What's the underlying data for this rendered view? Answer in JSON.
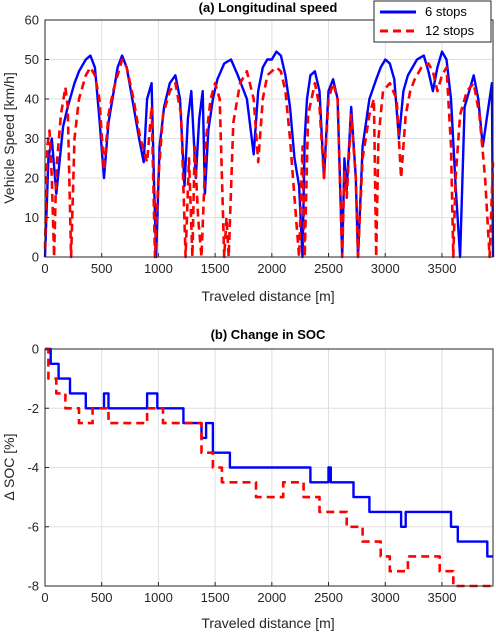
{
  "chart_data": [
    {
      "type": "line",
      "title": "(a) Longitudinal speed",
      "xlabel": "Traveled distance [m]",
      "ylabel": "Vehicle Speed [km/h]",
      "xlim": [
        0,
        3950
      ],
      "ylim": [
        0,
        60
      ],
      "xticks": [
        0,
        500,
        1000,
        1500,
        2000,
        2500,
        3000,
        3500
      ],
      "yticks": [
        0,
        10,
        20,
        30,
        40,
        50,
        60
      ],
      "grid": true,
      "legend": "top-right",
      "series": [
        {
          "name": "6 stops",
          "color": "#0000ff",
          "style": "solid",
          "x": [
            0,
            30,
            60,
            100,
            160,
            200,
            260,
            300,
            360,
            400,
            440,
            480,
            520,
            560,
            600,
            640,
            680,
            720,
            770,
            830,
            870,
            900,
            940,
            960,
            980,
            1010,
            1050,
            1100,
            1150,
            1190,
            1230,
            1260,
            1290,
            1330,
            1360,
            1390,
            1410,
            1440,
            1480,
            1520,
            1580,
            1640,
            1700,
            1780,
            1840,
            1880,
            1920,
            1960,
            2000,
            2040,
            2080,
            2120,
            2160,
            2200,
            2240,
            2270,
            2290,
            2310,
            2340,
            2380,
            2420,
            2460,
            2500,
            2540,
            2580,
            2620,
            2640,
            2660,
            2700,
            2740,
            2760,
            2800,
            2860,
            2920,
            2960,
            3000,
            3040,
            3080,
            3120,
            3160,
            3200,
            3240,
            3280,
            3340,
            3380,
            3420,
            3460,
            3500,
            3540,
            3580,
            3620,
            3660,
            3700,
            3740,
            3780,
            3820,
            3860,
            3900,
            3940,
            3950
          ],
          "y": [
            0,
            25,
            30,
            16,
            33,
            38,
            44,
            47,
            50,
            51,
            48,
            35,
            20,
            34,
            41,
            48,
            51,
            48,
            40,
            30,
            24,
            40,
            44,
            20,
            0,
            28,
            38,
            44,
            46,
            40,
            18,
            35,
            42,
            20,
            35,
            42,
            16,
            32,
            40,
            45,
            49,
            50,
            46,
            40,
            26,
            42,
            48,
            50,
            50,
            52,
            51,
            46,
            38,
            25,
            18,
            0,
            30,
            40,
            46,
            47,
            42,
            20,
            42,
            45,
            40,
            0,
            25,
            17,
            38,
            20,
            0,
            28,
            40,
            45,
            48,
            50,
            49,
            45,
            30,
            42,
            46,
            48,
            50,
            51,
            47,
            42,
            48,
            52,
            50,
            40,
            18,
            0,
            38,
            42,
            46,
            40,
            28,
            36,
            44,
            0
          ],
          "visible_extent_note": ""
        },
        {
          "name": "12 stops",
          "color": "#ff0000",
          "style": "dashed",
          "x": [
            0,
            20,
            40,
            60,
            80,
            100,
            140,
            180,
            200,
            230,
            260,
            300,
            360,
            400,
            440,
            480,
            520,
            560,
            600,
            640,
            680,
            720,
            780,
            840,
            900,
            940,
            970,
            1000,
            1040,
            1100,
            1150,
            1200,
            1240,
            1270,
            1300,
            1320,
            1350,
            1380,
            1420,
            1460,
            1500,
            1540,
            1580,
            1600,
            1620,
            1660,
            1720,
            1780,
            1840,
            1880,
            1920,
            1960,
            2000,
            2040,
            2080,
            2120,
            2160,
            2200,
            2240,
            2270,
            2290,
            2320,
            2380,
            2420,
            2460,
            2500,
            2540,
            2580,
            2620,
            2640,
            2660,
            2700,
            2740,
            2760,
            2800,
            2860,
            2900,
            2920,
            2940,
            2980,
            3040,
            3100,
            3140,
            3180,
            3220,
            3260,
            3320,
            3380,
            3420,
            3460,
            3500,
            3540,
            3580,
            3600,
            3620,
            3660,
            3720,
            3780,
            3830,
            3880,
            3920,
            3950
          ],
          "y": [
            2,
            28,
            32,
            20,
            0,
            22,
            36,
            43,
            38,
            0,
            30,
            40,
            46,
            48,
            46,
            40,
            22,
            36,
            42,
            46,
            50,
            48,
            40,
            30,
            24,
            38,
            0,
            20,
            36,
            42,
            44,
            36,
            0,
            25,
            0,
            28,
            10,
            0,
            30,
            40,
            44,
            40,
            0,
            10,
            0,
            34,
            44,
            47,
            40,
            24,
            40,
            46,
            47,
            48,
            47,
            42,
            30,
            15,
            0,
            28,
            0,
            36,
            44,
            38,
            20,
            40,
            44,
            40,
            0,
            22,
            15,
            36,
            20,
            0,
            25,
            36,
            40,
            0,
            30,
            42,
            44,
            40,
            20,
            36,
            42,
            45,
            48,
            49,
            47,
            42,
            46,
            48,
            28,
            0,
            20,
            36,
            42,
            44,
            36,
            20,
            0,
            24
          ]
        }
      ]
    },
    {
      "type": "line",
      "title": "(b) Change in SOC",
      "xlabel": "Traveled distance [m]",
      "ylabel": "Δ SOC [%]",
      "xlim": [
        0,
        3950
      ],
      "ylim": [
        -8,
        0
      ],
      "xticks": [
        0,
        500,
        1000,
        1500,
        2000,
        2500,
        3000,
        3500
      ],
      "yticks": [
        -8,
        -6,
        -4,
        -2,
        0
      ],
      "grid": true,
      "series": [
        {
          "name": "6 stops",
          "color": "#0000ff",
          "style": "solid",
          "x": [
            0,
            50,
            50,
            120,
            120,
            220,
            220,
            360,
            360,
            520,
            520,
            560,
            560,
            900,
            900,
            990,
            990,
            1220,
            1220,
            1380,
            1380,
            1420,
            1420,
            1480,
            1480,
            1630,
            1630,
            2340,
            2340,
            2500,
            2500,
            2520,
            2520,
            2720,
            2720,
            2860,
            2860,
            3140,
            3140,
            3180,
            3180,
            3580,
            3580,
            3640,
            3640,
            3900,
            3900,
            3950
          ],
          "y": [
            0,
            0,
            -0.5,
            -0.5,
            -1,
            -1,
            -1.5,
            -1.5,
            -2,
            -2,
            -1.5,
            -1.5,
            -2,
            -2,
            -1.5,
            -1.5,
            -2,
            -2,
            -2.5,
            -2.5,
            -3,
            -3,
            -2.5,
            -2.5,
            -3.5,
            -3.5,
            -4,
            -4,
            -4.5,
            -4.5,
            -4,
            -4,
            -4.5,
            -4.5,
            -5,
            -5,
            -5.5,
            -5.5,
            -6,
            -6,
            -5.5,
            -5.5,
            -6,
            -6,
            -6.5,
            -6.5,
            -7,
            -7
          ]
        },
        {
          "name": "12 stops",
          "color": "#ff0000",
          "style": "dashed",
          "x": [
            0,
            30,
            30,
            100,
            100,
            180,
            180,
            300,
            300,
            420,
            420,
            560,
            560,
            900,
            900,
            1040,
            1040,
            1380,
            1380,
            1480,
            1480,
            1560,
            1560,
            1860,
            1860,
            2100,
            2100,
            2280,
            2280,
            2420,
            2420,
            2660,
            2660,
            2800,
            2800,
            2960,
            2960,
            3040,
            3040,
            3200,
            3200,
            3480,
            3480,
            3600,
            3600,
            3780,
            3780,
            3950
          ],
          "y": [
            0,
            0,
            -1,
            -1,
            -1.5,
            -1.5,
            -2,
            -2,
            -2.5,
            -2.5,
            -2,
            -2,
            -2.5,
            -2.5,
            -2,
            -2,
            -2.5,
            -2.5,
            -3.5,
            -3.5,
            -4,
            -4,
            -4.5,
            -4.5,
            -5,
            -5,
            -4.5,
            -4.5,
            -5,
            -5,
            -5.5,
            -5.5,
            -6,
            -6,
            -6.5,
            -6.5,
            -7,
            -7,
            -7.5,
            -7.5,
            -7,
            -7,
            -7.5,
            -7.5,
            -8,
            -8,
            -8,
            -8
          ]
        }
      ]
    }
  ]
}
